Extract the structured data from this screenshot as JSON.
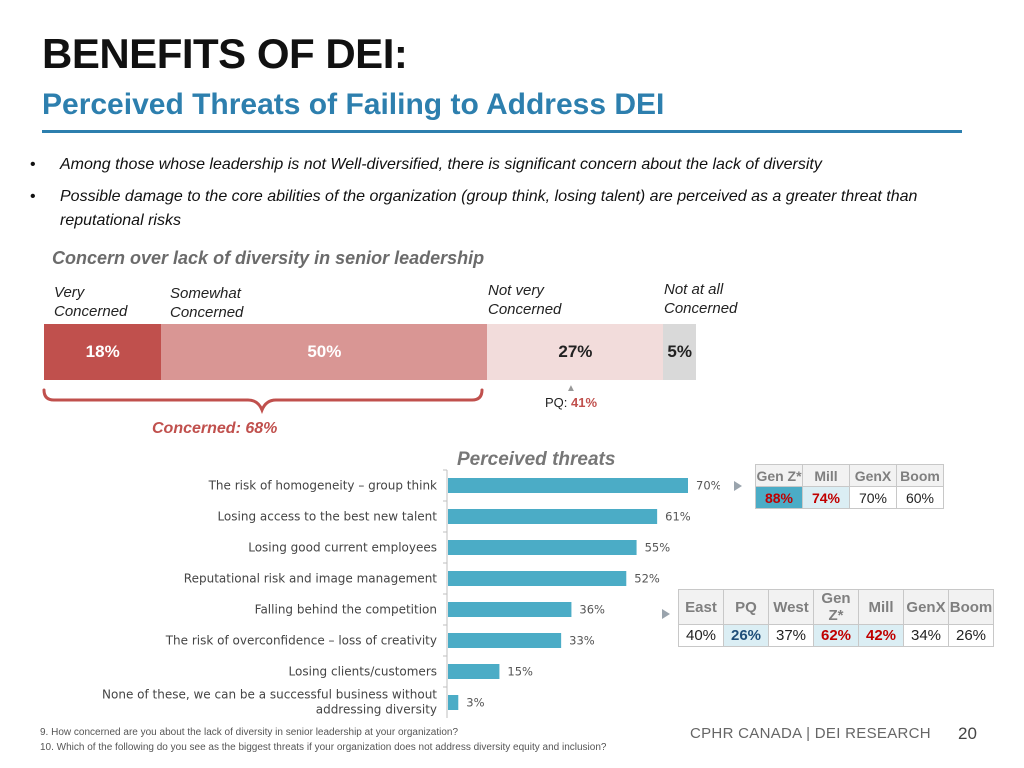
{
  "title": "BENEFITS OF DEI:",
  "subtitle": "Perceived Threats of Failing to Address DEI",
  "bullets": [
    "Among those whose leadership is not Well-diversified, there is significant concern about the lack of diversity",
    "Possible damage to the core abilities of the organization (group think, losing talent) are perceived as a greater threat than reputational risks"
  ],
  "bullet_symbol": "•",
  "concern": {
    "title": "Concern over lack of diversity in senior leadership",
    "segments": [
      {
        "label1": "Very",
        "label2": "Concerned",
        "value": 18,
        "value_text": "18%",
        "color": "#c0504d",
        "text_color": "#ffffff"
      },
      {
        "label1": "Somewhat",
        "label2": "Concerned",
        "value": 50,
        "value_text": "50%",
        "color": "#d99694",
        "text_color": "#ffffff"
      },
      {
        "label1": "Not very",
        "label2": "Concerned",
        "value": 27,
        "value_text": "27%",
        "color": "#f2dcdb",
        "text_color": "#222222"
      },
      {
        "label1": "Not at all",
        "label2": "Concerned",
        "value": 5,
        "value_text": "5%",
        "color": "#d9d9d9",
        "text_color": "#222222"
      }
    ],
    "concerned_total": "Concerned: 68%",
    "pq_label": "PQ:",
    "pq_value": "41%"
  },
  "perceived": {
    "title": "Perceived threats",
    "bar_color": "#4bacc6"
  },
  "chart_data": {
    "type": "bar",
    "orientation": "horizontal",
    "title": "Perceived threats",
    "categories": [
      "The risk of homogeneity – group think",
      "Losing access to the best new talent",
      "Losing good current employees",
      "Reputational risk and image management",
      "Falling behind the competition",
      "The risk of overconfidence – loss of creativity",
      "Losing clients/customers",
      "None of these, we can be a successful business without addressing diversity"
    ],
    "values": [
      70,
      61,
      55,
      52,
      36,
      33,
      15,
      3
    ],
    "value_labels": [
      "70%",
      "61%",
      "55%",
      "52%",
      "36%",
      "33%",
      "15%",
      "3%"
    ],
    "xlim": [
      0,
      100
    ],
    "grid": false
  },
  "table_homogeneity": {
    "headers": [
      "Gen Z*",
      "Mill",
      "GenX",
      "Boom"
    ],
    "values": [
      "88%",
      "74%",
      "70%",
      "60%"
    ]
  },
  "table_competition": {
    "headers": [
      "East",
      "PQ",
      "West",
      "Gen Z*",
      "Mill",
      "GenX",
      "Boom"
    ],
    "values": [
      "40%",
      "26%",
      "37%",
      "62%",
      "42%",
      "34%",
      "26%"
    ]
  },
  "footnotes": [
    "9. How concerned are you about the lack of diversity in senior leadership at your organization?",
    "10. Which of the following do you see as the biggest threats if your organization does not address diversity equity and inclusion?"
  ],
  "brand": "CPHR CANADA | DEI RESEARCH",
  "page_number": "20"
}
